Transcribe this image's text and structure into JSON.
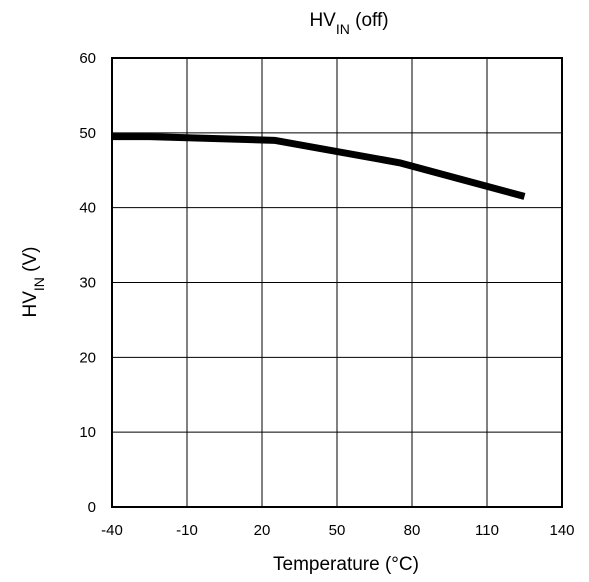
{
  "chart_data": {
    "type": "line",
    "title": {
      "main": "HV",
      "sub": "IN",
      "suffix": " (off)"
    },
    "xlabel": "Temperature (°C)",
    "ylabel": {
      "main": "HV",
      "sub": "IN",
      "suffix": " (V)"
    },
    "xlim": [
      -40,
      140
    ],
    "ylim": [
      0,
      60
    ],
    "xticks": [
      -40,
      -10,
      20,
      50,
      80,
      110,
      140
    ],
    "yticks": [
      0,
      10,
      20,
      30,
      40,
      50,
      60
    ],
    "grid": true,
    "series": [
      {
        "color": "#000000",
        "x": [
          -40,
          -25,
          25,
          75,
          125
        ],
        "y": [
          49.5,
          49.5,
          49.0,
          46.0,
          41.5
        ]
      }
    ]
  }
}
